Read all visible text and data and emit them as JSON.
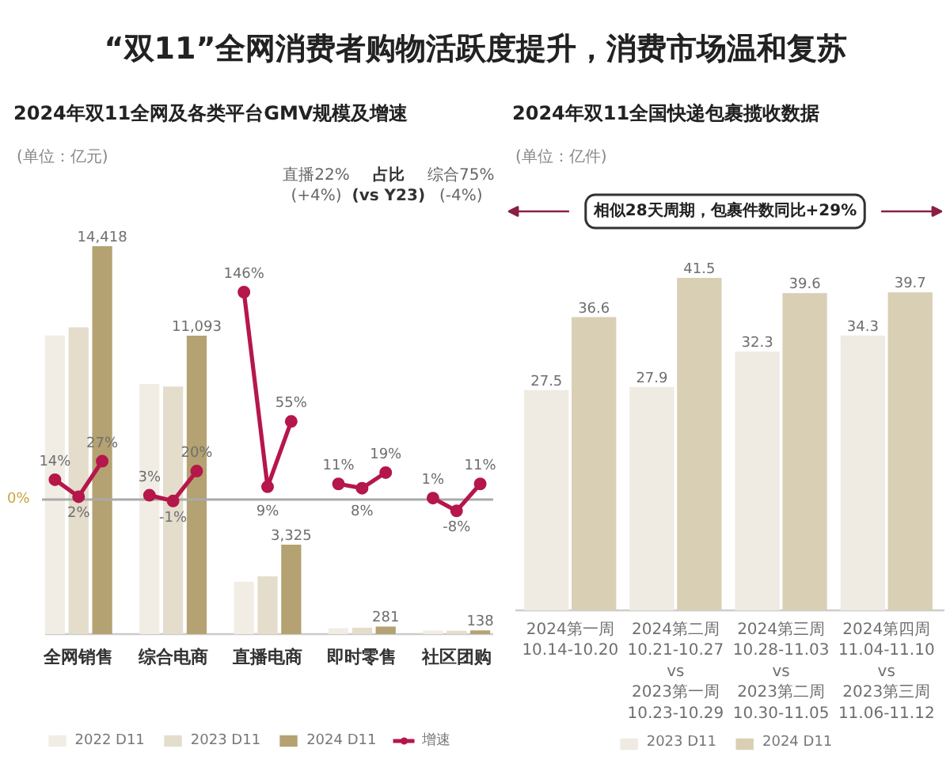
{
  "chart_data": [
    {
      "type": "other",
      "title": "“双11”全网消费者购物活跃度提升，消费市场温和复苏"
    },
    {
      "type": "bar",
      "title": "2024年双11全网及各类平台GMV规模及增速",
      "annotations": [
        "(单位：亿元)",
        "直播22%\n(+4%)",
        "占比\n(vs Y23)",
        "综合75%\n(-4%)"
      ],
      "categories": [
        null,
        "全网销售",
        null,
        null,
        null,
        "综合电商",
        null,
        null,
        null,
        "直播电商",
        null,
        null,
        null,
        "即时零售",
        null,
        null,
        null,
        "社区团购",
        null
      ],
      "series": [
        {
          "name": "2022 D11",
          "color": "#f1ede5",
          "values": [
            11100,
            null,
            null,
            null,
            9300,
            null,
            null,
            null,
            1950,
            null,
            null,
            null,
            220,
            null,
            null,
            null,
            135,
            null,
            null
          ]
        },
        {
          "name": "2023 D11",
          "color": "#e4ddcc",
          "values": [
            null,
            11400,
            null,
            null,
            null,
            9200,
            null,
            null,
            null,
            2150,
            null,
            null,
            null,
            240,
            null,
            null,
            null,
            125,
            null
          ]
        },
        {
          "name": "2024 D11",
          "color": "#b4a272",
          "values": [
            null,
            null,
            14418,
            null,
            null,
            null,
            11093,
            null,
            null,
            null,
            3325,
            null,
            null,
            null,
            281,
            null,
            null,
            null,
            138
          ],
          "value_labels": [
            null,
            null,
            "14,418",
            null,
            null,
            null,
            "11,093",
            null,
            null,
            null,
            "3,325",
            null,
            null,
            null,
            "281",
            null,
            null,
            null,
            "138"
          ]
        },
        {
          "name": "增速",
          "type": "line",
          "axis": "y2",
          "color": "#b5174b",
          "values": [
            14,
            2,
            27,
            null,
            3,
            -1,
            20,
            null,
            146,
            9,
            55,
            null,
            11,
            8,
            19,
            null,
            1,
            -8,
            11
          ],
          "value_labels": [
            "14%",
            "2%",
            "27%",
            null,
            "3%",
            "-1%",
            "20%",
            null,
            "146%",
            "9%",
            "55%",
            null,
            "11%",
            "8%",
            "19%",
            null,
            "1%",
            "-8%",
            "11%"
          ]
        }
      ],
      "ref_lines": [
        {
          "axis": "y2",
          "value": 0,
          "label": "0%",
          "color": "#aaaaaa"
        }
      ],
      "tick_labels": "x",
      "legend": "bottom",
      "marker": "circle"
    },
    {
      "type": "bar",
      "title": "2024年双11全国快递包裹揽收数据",
      "annotations": [
        "(单位：亿件)",
        "相似28天周期，包裹件数同比+29%"
      ],
      "categories": [
        "2024第一周\n10.14-10.20",
        "2024第二周\n10.21-10.27\nvs\n2023第一周\n10.23-10.29",
        "2024第三周\n10.28-11.03\nvs\n2023第二周\n10.30-11.05",
        "2024第四周\n11.04-11.10\nvs\n2023第三周\n11.06-11.12"
      ],
      "series": [
        {
          "name": "2023 D11",
          "color": "#efebe2",
          "values": [
            27.5,
            27.9,
            32.3,
            34.3
          ]
        },
        {
          "name": "2024 D11",
          "color": "#d9cfb4",
          "values": [
            36.6,
            41.5,
            39.6,
            39.7
          ]
        }
      ],
      "data_labels": true,
      "tick_labels": "x",
      "legend": "bottom"
    }
  ]
}
